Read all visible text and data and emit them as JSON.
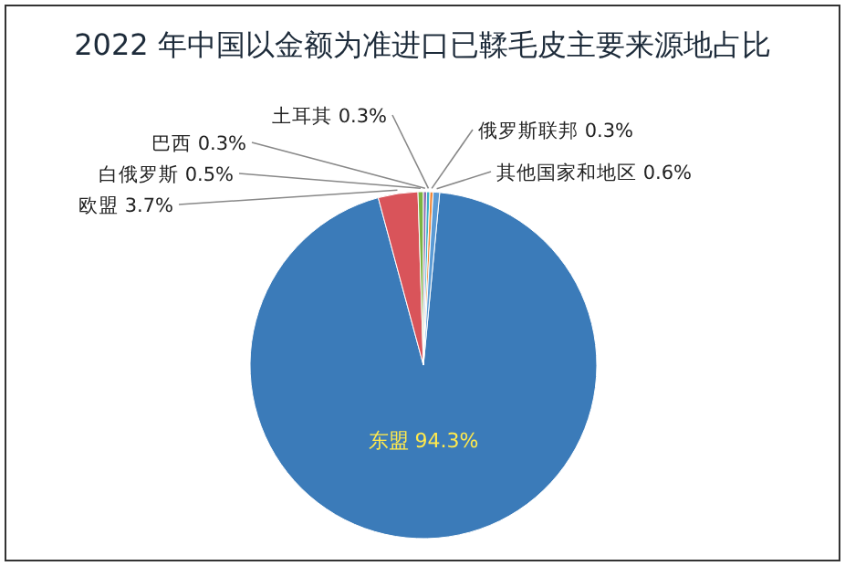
{
  "chart_data": {
    "type": "pie",
    "title": "2022 年中国以金额为准进口已鞣毛皮主要来源地占比",
    "categories": [
      "东盟",
      "欧盟",
      "白俄罗斯",
      "巴西",
      "土耳其",
      "俄罗斯联邦",
      "其他国家和地区"
    ],
    "values": [
      94.3,
      3.7,
      0.5,
      0.3,
      0.3,
      0.3,
      0.6
    ],
    "colors": [
      "#3b7bb9",
      "#d9545a",
      "#7cb342",
      "#8e6bb0",
      "#3bb0c9",
      "#f08a3c",
      "#5b9bd5"
    ],
    "value_labels": [
      "94.3%",
      "3.7%",
      "0.5%",
      "0.3%",
      "0.3%",
      "0.3%",
      "0.6%"
    ]
  }
}
